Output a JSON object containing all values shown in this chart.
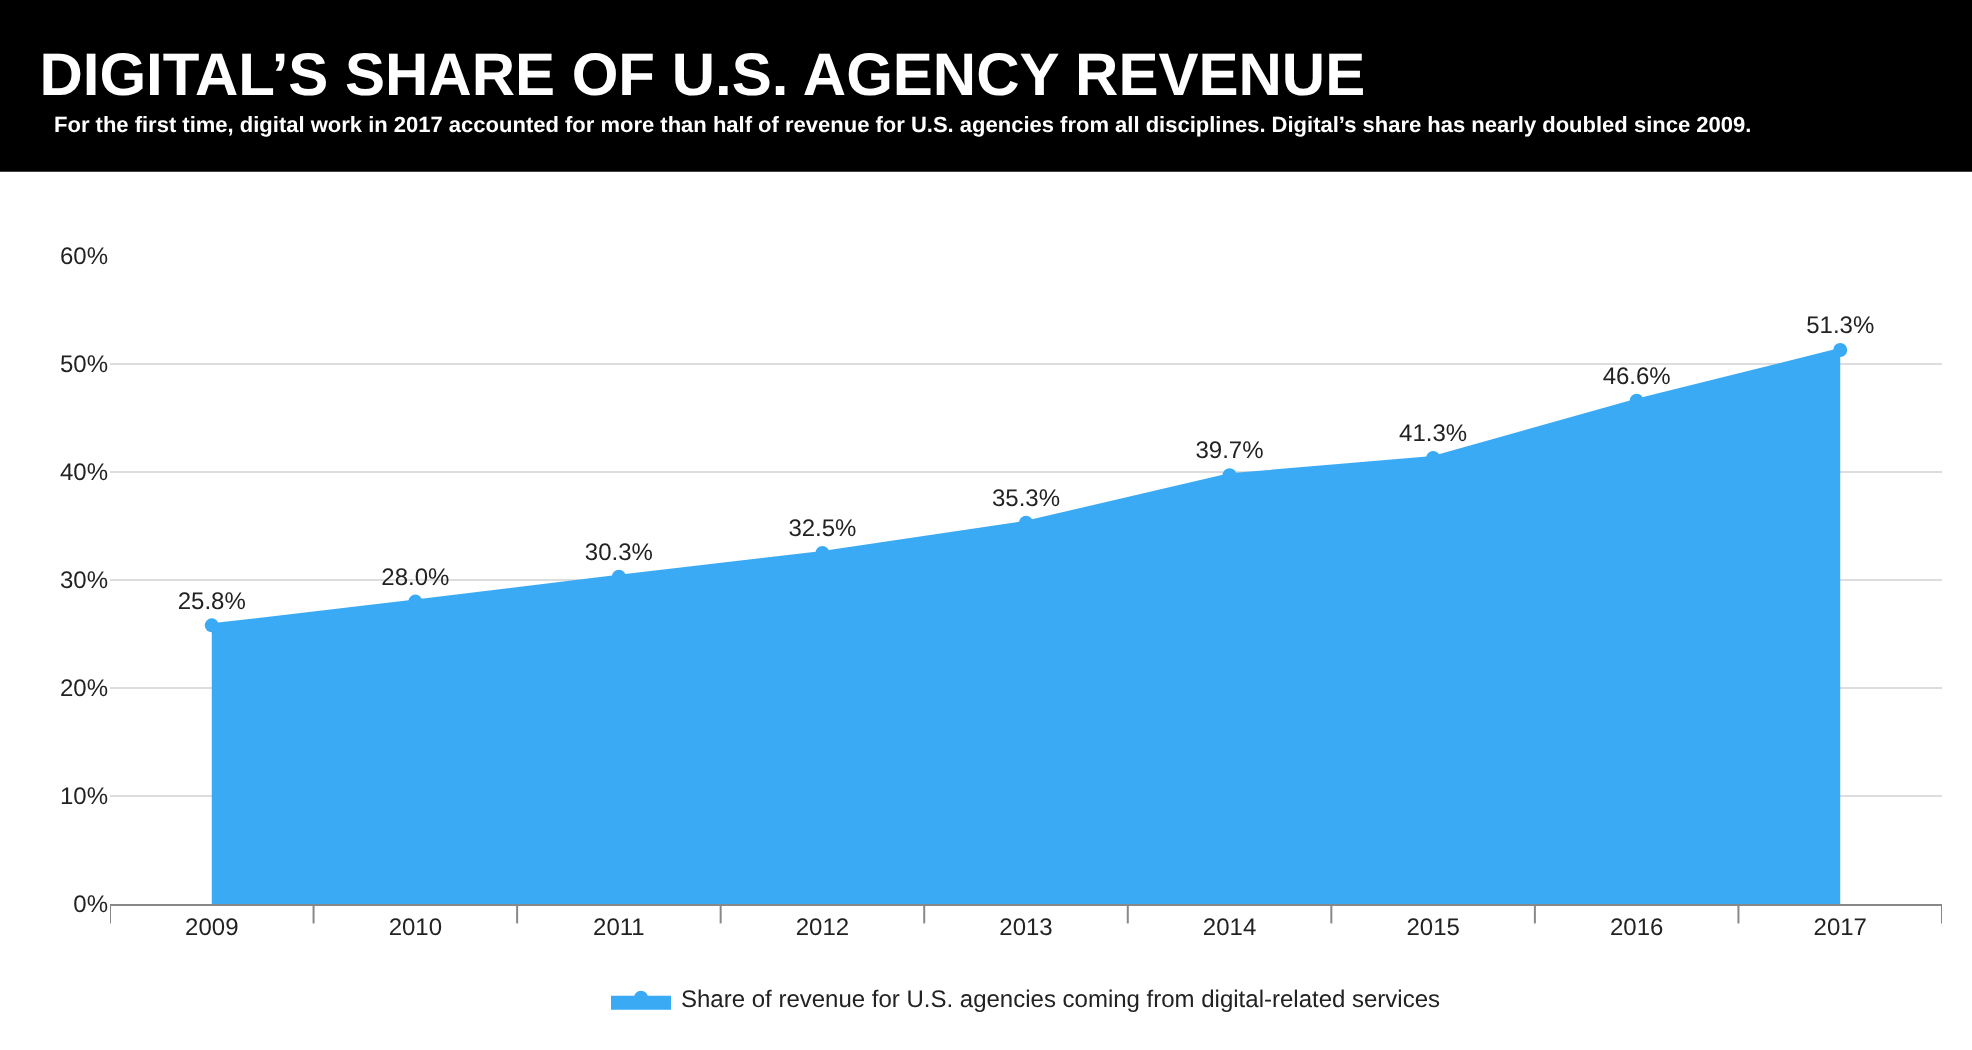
{
  "chart_data": {
    "type": "area",
    "title": "DIGITAL’S SHARE OF U.S. AGENCY REVENUE",
    "subtitle": "For the first time, digital work in 2017 accounted for more than half of revenue for U.S. agencies from all disciplines. Digital’s share has nearly doubled since 2009.",
    "categories": [
      "2009",
      "2010",
      "2011",
      "2012",
      "2013",
      "2014",
      "2015",
      "2016",
      "2017"
    ],
    "series": [
      {
        "name": "Share of revenue for U.S. agencies coming from digital-related services",
        "color": "#3aaaf5",
        "values": [
          25.8,
          28.0,
          30.3,
          32.5,
          35.3,
          39.7,
          41.3,
          46.6,
          51.3
        ],
        "value_labels": [
          "25.8%",
          "28.0%",
          "30.3%",
          "32.5%",
          "35.3%",
          "39.7%",
          "41.3%",
          "46.6%",
          "51.3%"
        ]
      }
    ],
    "ylim": [
      0,
      60
    ],
    "yticks": [
      {
        "value": 0,
        "label": "0%"
      },
      {
        "value": 10,
        "label": "10%"
      },
      {
        "value": 20,
        "label": "20%"
      },
      {
        "value": 30,
        "label": "30%"
      },
      {
        "value": 40,
        "label": "40%"
      },
      {
        "value": 50,
        "label": "50%"
      },
      {
        "value": 60,
        "label": "60%"
      }
    ],
    "grid": "y",
    "legend": "bottom",
    "marker": "circle",
    "line_style": "solid"
  }
}
